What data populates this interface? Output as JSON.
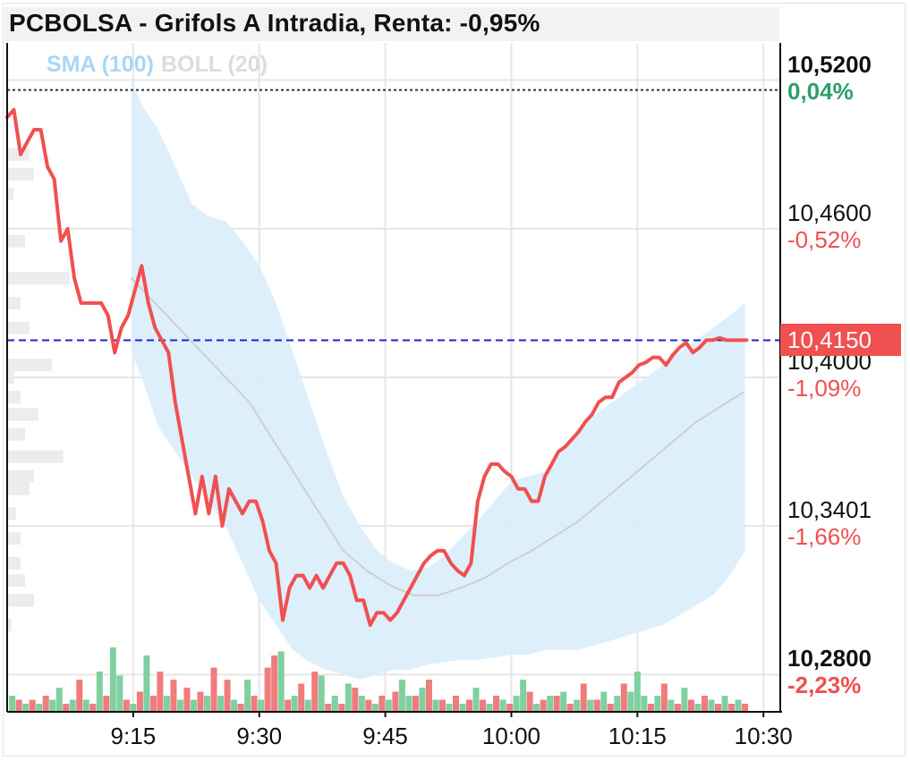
{
  "title": "PCBOLSA - Grifols A Intradia, Renta: -0,95%",
  "legend": {
    "sma_label": "SMA (100)",
    "boll_label": "BOLL (20)"
  },
  "colors": {
    "price_line": "#f05050",
    "sma": "#a9d6f5",
    "boll_band": "#d8ecfb",
    "boll_mid": "#cfcfcf",
    "up_volume": "#7fd0a1",
    "down_volume": "#f07c7c",
    "positive": "#2e9e6a",
    "negative": "#f05050",
    "last_price_line": "#2222cc",
    "reference_line": "#333333"
  },
  "current_price": "10,4150",
  "chart_data": {
    "type": "line",
    "title": "PCBOLSA - Grifols A Intradia, Renta: -0,95%",
    "xlabel": "",
    "ylabel": "",
    "x_ticks": [
      "9:15",
      "9:30",
      "9:45",
      "10:00",
      "10:15",
      "10:30"
    ],
    "x_tick_minutes": [
      555,
      570,
      585,
      600,
      615,
      630
    ],
    "xlim_minutes": [
      540,
      632
    ],
    "ylim": [
      10.265,
      10.535
    ],
    "y_ticks": [
      {
        "value": 10.52,
        "label": "10,5200",
        "pct": "0,04%",
        "bold": true,
        "pct_color": "positive"
      },
      {
        "value": 10.46,
        "label": "10,4600",
        "pct": "-0,52%",
        "bold": false,
        "pct_color": "negative"
      },
      {
        "value": 10.4,
        "label": "10,4000",
        "pct": "-1,09%",
        "bold": false,
        "pct_color": "negative"
      },
      {
        "value": 10.3401,
        "label": "10,3401",
        "pct": "-1,66%",
        "bold": false,
        "pct_color": "negative"
      },
      {
        "value": 10.28,
        "label": "10,2800",
        "pct": "-2,23%",
        "bold": true,
        "pct_color": "negative"
      }
    ],
    "reference_level": 10.516,
    "last_price": 10.415,
    "grid": true,
    "series": [
      {
        "name": "Grifols A",
        "x": [
          540.0,
          540.8,
          541.6,
          542.4,
          543.2,
          544.0,
          544.8,
          545.6,
          546.4,
          547.2,
          548.0,
          548.8,
          549.6,
          550.4,
          551.2,
          552.0,
          552.8,
          553.6,
          554.4,
          555.2,
          556.0,
          556.8,
          557.6,
          558.4,
          559.2,
          560.0,
          560.8,
          561.6,
          562.4,
          563.2,
          564.0,
          564.8,
          565.6,
          566.4,
          567.2,
          568.0,
          568.8,
          569.6,
          570.4,
          571.2,
          572.0,
          572.8,
          573.6,
          574.4,
          575.2,
          576.0,
          576.8,
          577.6,
          578.4,
          579.2,
          580.0,
          580.8,
          581.6,
          582.4,
          583.2,
          584.0,
          584.8,
          585.6,
          586.4,
          587.2,
          588.0,
          588.8,
          589.6,
          590.4,
          591.2,
          592.0,
          592.8,
          593.6,
          594.4,
          595.2,
          596.0,
          596.8,
          597.6,
          598.4,
          599.2,
          600.0,
          600.8,
          601.6,
          602.4,
          603.2,
          604.0,
          604.8,
          605.6,
          606.4,
          607.2,
          608.0,
          608.8,
          609.6,
          610.4,
          611.2,
          612.0,
          612.8,
          613.6,
          614.4,
          615.2,
          616.0,
          616.8,
          617.6,
          618.4,
          619.2,
          620.0,
          620.8,
          621.6,
          622.4,
          623.2,
          624.0,
          624.8,
          625.6,
          626.4,
          627.2,
          628.0
        ],
        "values": [
          10.505,
          10.508,
          10.49,
          10.495,
          10.5,
          10.5,
          10.485,
          10.48,
          10.455,
          10.46,
          10.44,
          10.43,
          10.43,
          10.43,
          10.43,
          10.425,
          10.41,
          10.42,
          10.425,
          10.435,
          10.445,
          10.43,
          10.42,
          10.415,
          10.41,
          10.39,
          10.375,
          10.36,
          10.345,
          10.36,
          10.345,
          10.36,
          10.34,
          10.355,
          10.35,
          10.345,
          10.35,
          10.35,
          10.342,
          10.33,
          10.325,
          10.302,
          10.315,
          10.32,
          10.32,
          10.315,
          10.32,
          10.315,
          10.32,
          10.325,
          10.325,
          10.32,
          10.31,
          10.31,
          10.3,
          10.305,
          10.305,
          10.302,
          10.305,
          10.31,
          10.315,
          10.32,
          10.325,
          10.328,
          10.33,
          10.33,
          10.325,
          10.322,
          10.32,
          10.325,
          10.35,
          10.36,
          10.365,
          10.365,
          10.362,
          10.36,
          10.355,
          10.355,
          10.35,
          10.35,
          10.36,
          10.365,
          10.37,
          10.372,
          10.375,
          10.378,
          10.382,
          10.385,
          10.39,
          10.392,
          10.392,
          10.398,
          10.4,
          10.402,
          10.405,
          10.406,
          10.408,
          10.408,
          10.405,
          10.409,
          10.412,
          10.414,
          10.41,
          10.412,
          10.415,
          10.415,
          10.416,
          10.415,
          10.415,
          10.415,
          10.415
        ]
      },
      {
        "name": "SMA (100)",
        "x": [
          554.8,
          557.6,
          560.4,
          563.2,
          566.0,
          568.8,
          571.6,
          574.4,
          577.2,
          580.0,
          582.8,
          585.6,
          588.4,
          591.2,
          594.0,
          596.8,
          599.6,
          602.4,
          605.2,
          608.0,
          610.8,
          613.6,
          616.4,
          619.2,
          622.0,
          624.8,
          627.6
        ],
        "values": [
          10.44,
          10.43,
          10.42,
          10.41,
          10.4,
          10.39,
          10.375,
          10.36,
          10.345,
          10.33,
          10.322,
          10.316,
          10.312,
          10.312,
          10.315,
          10.319,
          10.325,
          10.33,
          10.336,
          10.342,
          10.35,
          10.358,
          10.366,
          10.374,
          10.382,
          10.388,
          10.394
        ]
      }
    ],
    "bollinger": {
      "x": [
        554.8,
        556.0,
        558.0,
        560.0,
        562.0,
        564.0,
        566.0,
        568.0,
        570.0,
        572.0,
        574.0,
        576.0,
        578.0,
        580.0,
        582.0,
        584.0,
        586.0,
        588.0,
        590.0,
        592.0,
        594.0,
        596.0,
        598.0,
        600.0,
        602.0,
        604.0,
        606.0,
        608.0,
        610.0,
        612.0,
        614.0,
        616.0,
        618.0,
        620.0,
        622.0,
        624.0,
        626.0,
        627.8
      ],
      "upper": [
        10.52,
        10.51,
        10.5,
        10.485,
        10.47,
        10.465,
        10.463,
        10.455,
        10.445,
        10.43,
        10.41,
        10.39,
        10.37,
        10.352,
        10.34,
        10.33,
        10.325,
        10.322,
        10.323,
        10.328,
        10.335,
        10.342,
        10.35,
        10.358,
        10.36,
        10.362,
        10.37,
        10.378,
        10.385,
        10.39,
        10.395,
        10.4,
        10.405,
        10.41,
        10.415,
        10.42,
        10.425,
        10.43
      ],
      "lower": [
        10.41,
        10.4,
        10.38,
        10.37,
        10.36,
        10.35,
        10.34,
        10.325,
        10.31,
        10.3,
        10.29,
        10.285,
        10.282,
        10.28,
        10.278,
        10.28,
        10.282,
        10.282,
        10.284,
        10.285,
        10.286,
        10.286,
        10.287,
        10.288,
        10.288,
        10.29,
        10.29,
        10.29,
        10.292,
        10.294,
        10.296,
        10.298,
        10.3,
        10.304,
        10.308,
        10.312,
        10.32,
        10.33
      ]
    },
    "volume": {
      "x": [
        540.6,
        541.4,
        542.2,
        543.0,
        543.8,
        544.6,
        545.4,
        546.2,
        547.0,
        547.8,
        548.6,
        549.4,
        550.2,
        551.0,
        551.8,
        552.6,
        553.4,
        554.2,
        555.0,
        555.8,
        556.6,
        557.4,
        558.2,
        559.0,
        559.8,
        560.6,
        561.4,
        562.2,
        563.0,
        563.8,
        564.6,
        565.4,
        566.2,
        567.0,
        567.8,
        568.6,
        569.4,
        570.2,
        571.0,
        571.8,
        572.6,
        573.4,
        574.2,
        575.0,
        575.8,
        576.6,
        577.4,
        578.2,
        579.0,
        579.8,
        580.6,
        581.4,
        582.2,
        583.0,
        583.8,
        584.6,
        585.4,
        586.2,
        587.0,
        587.8,
        588.6,
        589.4,
        590.2,
        591.0,
        591.8,
        592.6,
        593.4,
        594.2,
        595.0,
        595.8,
        596.6,
        597.4,
        598.2,
        599.0,
        599.8,
        600.6,
        601.4,
        602.2,
        603.0,
        603.8,
        604.6,
        605.4,
        606.2,
        607.0,
        607.8,
        608.6,
        609.4,
        610.2,
        611.0,
        611.8,
        612.6,
        613.4,
        614.2,
        615.0,
        615.8,
        616.6,
        617.4,
        618.2,
        619.0,
        619.8,
        620.6,
        621.4,
        622.2,
        623.0,
        623.8,
        624.6,
        625.4,
        626.2,
        627.0,
        627.8
      ],
      "values": [
        4,
        3,
        2,
        3,
        2,
        4,
        3,
        6,
        2,
        3,
        8,
        3,
        2,
        10,
        4,
        16,
        9,
        3,
        2,
        5,
        14,
        4,
        10,
        4,
        8,
        3,
        6,
        3,
        5,
        4,
        11,
        4,
        8,
        3,
        2,
        8,
        4,
        3,
        11,
        14,
        15,
        3,
        4,
        7,
        3,
        10,
        9,
        2,
        4,
        2,
        7,
        6,
        4,
        3,
        2,
        4,
        3,
        5,
        8,
        4,
        4,
        6,
        8,
        3,
        3,
        2,
        4,
        2,
        3,
        6,
        3,
        2,
        4,
        3,
        2,
        4,
        8,
        5,
        2,
        3,
        4,
        4,
        5,
        2,
        3,
        7,
        3,
        3,
        5,
        2,
        4,
        7,
        5,
        10,
        4,
        2,
        4,
        7,
        3,
        2,
        6,
        3,
        2,
        4,
        3,
        2,
        4,
        2,
        3,
        2
      ],
      "up": [
        true,
        false,
        true,
        false,
        true,
        false,
        true,
        true,
        false,
        true,
        false,
        true,
        false,
        true,
        false,
        true,
        true,
        false,
        true,
        false,
        true,
        false,
        false,
        true,
        false,
        true,
        false,
        true,
        false,
        true,
        false,
        true,
        false,
        true,
        false,
        true,
        false,
        true,
        false,
        false,
        true,
        false,
        true,
        false,
        true,
        false,
        true,
        false,
        true,
        false,
        true,
        false,
        true,
        false,
        true,
        false,
        true,
        false,
        true,
        true,
        false,
        true,
        false,
        true,
        false,
        true,
        false,
        true,
        false,
        true,
        false,
        true,
        false,
        true,
        false,
        true,
        true,
        false,
        true,
        false,
        true,
        false,
        true,
        false,
        true,
        false,
        true,
        false,
        true,
        false,
        true,
        false,
        true,
        true,
        true,
        false,
        true,
        false,
        true,
        false,
        true,
        false,
        true,
        false,
        true,
        false,
        true,
        false,
        true,
        false
      ]
    },
    "depth_profile": {
      "values": [
        10.49,
        10.482,
        10.474,
        10.455,
        10.44,
        10.43,
        10.42,
        10.405,
        10.4,
        10.392,
        10.385,
        10.377,
        10.368,
        10.36,
        10.355,
        10.345,
        10.335,
        10.325,
        10.318,
        10.31,
        10.3
      ],
      "sizes": [
        10,
        12,
        3,
        8,
        28,
        6,
        10,
        20,
        3,
        6,
        14,
        8,
        25,
        12,
        10,
        4,
        6,
        6,
        8,
        12,
        2
      ]
    }
  },
  "x_labels": [
    "9:15",
    "9:30",
    "9:45",
    "10:00",
    "10:15",
    "10:30"
  ]
}
